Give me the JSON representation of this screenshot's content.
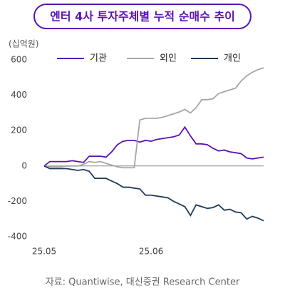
{
  "chart_data": {
    "type": "line",
    "title": "엔터 4사 투자주체별 누적 순매수 추이",
    "y_label": "(십억원)",
    "source": "자료: Quantiwise, 대신증권 Research Center",
    "categories": [
      "25.05",
      null,
      null,
      null,
      null,
      null,
      null,
      null,
      null,
      null,
      null,
      null,
      null,
      null,
      null,
      null,
      null,
      null,
      null,
      "25.06",
      null,
      null,
      null,
      null,
      null,
      null,
      null,
      null,
      null,
      null,
      null,
      null,
      null,
      null,
      null,
      null,
      null,
      null,
      null,
      null
    ],
    "series": [
      {
        "name": "기관",
        "color": "#5a12b4",
        "values": [
          0,
          25,
          25,
          25,
          25,
          30,
          25,
          20,
          55,
          55,
          55,
          50,
          80,
          120,
          140,
          145,
          145,
          135,
          145,
          140,
          150,
          155,
          160,
          165,
          175,
          220,
          170,
          125,
          125,
          120,
          100,
          85,
          90,
          80,
          75,
          70,
          45,
          40,
          45,
          50
        ]
      },
      {
        "name": "외인",
        "color": "#a6a6a6",
        "values": [
          0,
          -5,
          -5,
          -5,
          0,
          0,
          0,
          10,
          25,
          20,
          25,
          15,
          5,
          -5,
          -10,
          -10,
          -10,
          260,
          270,
          270,
          270,
          275,
          285,
          295,
          305,
          320,
          300,
          330,
          375,
          375,
          380,
          410,
          420,
          430,
          440,
          480,
          510,
          530,
          545,
          555
        ]
      },
      {
        "name": "개인",
        "color": "#1f3a5a",
        "values": [
          0,
          -15,
          -15,
          -15,
          -15,
          -20,
          -25,
          -20,
          -30,
          -70,
          -70,
          -70,
          -85,
          -100,
          -120,
          -120,
          -125,
          -130,
          -165,
          -165,
          -170,
          -175,
          -180,
          -200,
          -215,
          -230,
          -280,
          -220,
          -230,
          -240,
          -235,
          -220,
          -250,
          -245,
          -260,
          -265,
          -300,
          -285,
          -295,
          -310
        ]
      }
    ],
    "ylim": [
      -400,
      600
    ],
    "yticks": [
      -400,
      -200,
      0,
      200,
      400,
      600
    ],
    "grid": false,
    "legend": "top"
  }
}
